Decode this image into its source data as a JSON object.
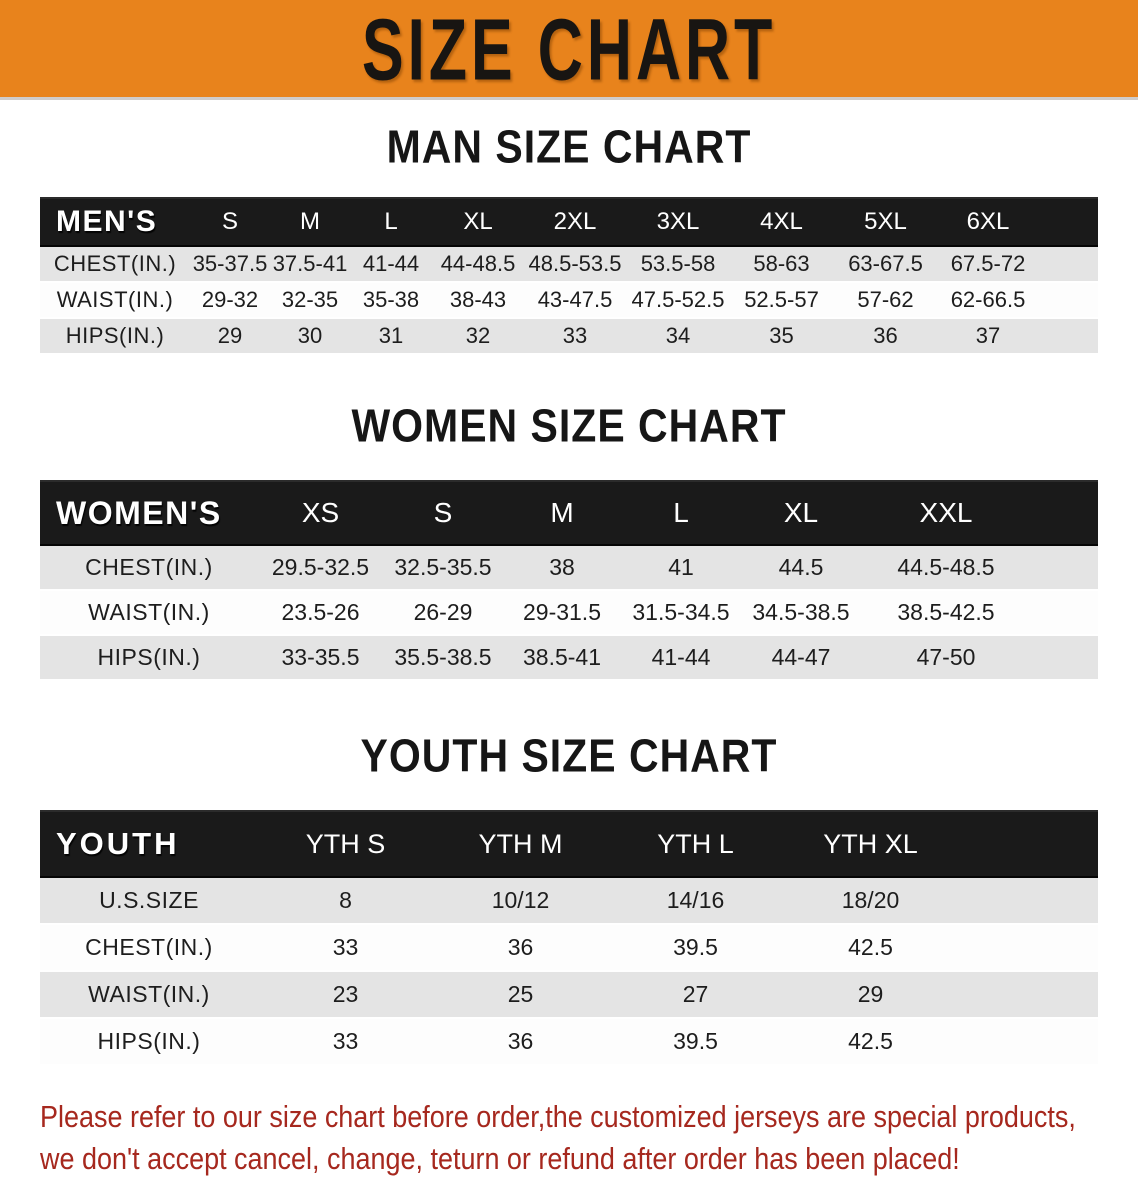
{
  "banner": {
    "title": "SIZE CHART"
  },
  "colors": {
    "banner_bg": "#E8831C",
    "header_bar": "#1A1A1A",
    "row_gray": "#E4E4E4",
    "row_white": "#FDFDFD",
    "footer_red": "#A6281E"
  },
  "sections": {
    "men_title": "MAN SIZE CHART",
    "women_title": "WOMEN SIZE CHART",
    "youth_title": "YOUTH SIZE CHART"
  },
  "tables": {
    "men": {
      "corner_label": "MEN'S",
      "sizes": [
        "S",
        "M",
        "L",
        "XL",
        "2XL",
        "3XL",
        "4XL",
        "5XL",
        "6XL"
      ],
      "rows": [
        {
          "label": "CHEST(IN.)",
          "values": [
            "35-37.5",
            "37.5-41",
            "41-44",
            "44-48.5",
            "48.5-53.5",
            "53.5-58",
            "58-63",
            "63-67.5",
            "67.5-72"
          ]
        },
        {
          "label": "WAIST(IN.)",
          "values": [
            "29-32",
            "32-35",
            "35-38",
            "38-43",
            "43-47.5",
            "47.5-52.5",
            "52.5-57",
            "57-62",
            "62-66.5"
          ]
        },
        {
          "label": "HIPS(IN.)",
          "values": [
            "29",
            "30",
            "31",
            "32",
            "33",
            "34",
            "35",
            "36",
            "37"
          ]
        }
      ]
    },
    "women": {
      "corner_label": "WOMEN'S",
      "sizes": [
        "XS",
        "S",
        "M",
        "L",
        "XL",
        "XXL"
      ],
      "rows": [
        {
          "label": "CHEST(IN.)",
          "values": [
            "29.5-32.5",
            "32.5-35.5",
            "38",
            "41",
            "44.5",
            "44.5-48.5"
          ]
        },
        {
          "label": "WAIST(IN.)",
          "values": [
            "23.5-26",
            "26-29",
            "29-31.5",
            "31.5-34.5",
            "34.5-38.5",
            "38.5-42.5"
          ]
        },
        {
          "label": "HIPS(IN.)",
          "values": [
            "33-35.5",
            "35.5-38.5",
            "38.5-41",
            "41-44",
            "44-47",
            "47-50"
          ]
        }
      ]
    },
    "youth": {
      "corner_label": "YOUTH",
      "sizes": [
        "YTH S",
        "YTH M",
        "YTH L",
        "YTH XL"
      ],
      "rows": [
        {
          "label": "U.S.SIZE",
          "values": [
            "8",
            "10/12",
            "14/16",
            "18/20"
          ]
        },
        {
          "label": "CHEST(IN.)",
          "values": [
            "33",
            "36",
            "39.5",
            "42.5"
          ]
        },
        {
          "label": "WAIST(IN.)",
          "values": [
            "23",
            "25",
            "27",
            "29"
          ]
        },
        {
          "label": "HIPS(IN.)",
          "values": [
            "33",
            "36",
            "39.5",
            "42.5"
          ]
        }
      ]
    }
  },
  "footer": {
    "line1": "Please refer to our size chart before order,the customized jerseys are special products,",
    "line2": "we don't accept cancel, change, teturn or refund after order has been placed!"
  }
}
